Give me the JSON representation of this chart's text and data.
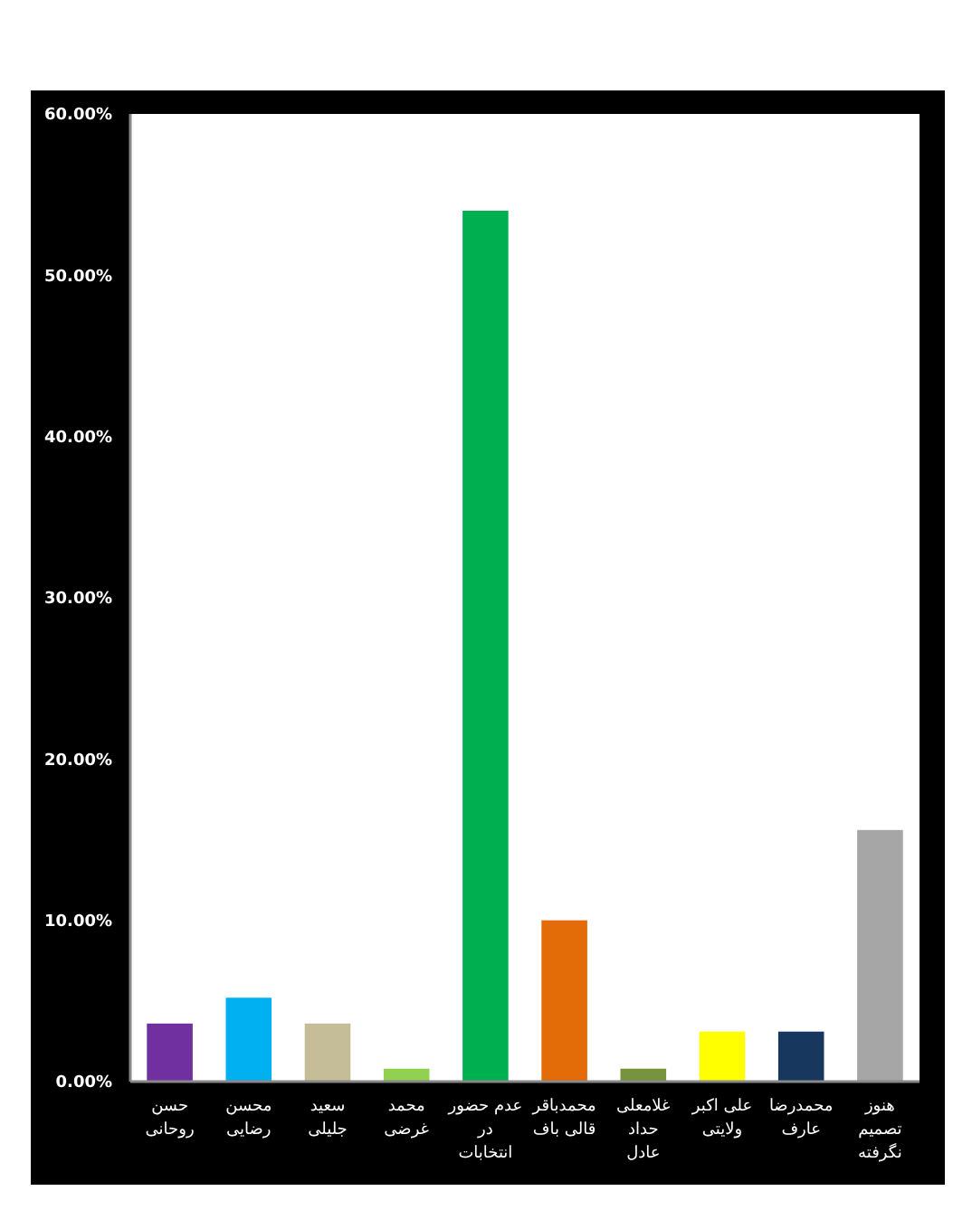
{
  "chart_data": {
    "type": "bar",
    "categories": [
      "حسن روحانی",
      "محسن رضایی",
      "سعید جلیلی",
      "محمد غرضی",
      "عدم حضور در انتخابات",
      "محمدباقر قالی باف",
      "غلامعلی حداد عادل",
      "علی اکبر ولایتی",
      "محمدرضا عارف",
      "هنوز تصمیم نگرفته"
    ],
    "values": [
      3.6,
      5.2,
      3.6,
      0.8,
      54.0,
      10.0,
      0.8,
      3.1,
      3.1,
      15.6
    ],
    "colors": [
      "#7030a0",
      "#00b0f0",
      "#c4bd97",
      "#92d050",
      "#00b050",
      "#e36c09",
      "#77933c",
      "#ffff00",
      "#17375e",
      "#a6a6a6"
    ],
    "ylim": [
      0,
      60
    ],
    "yticks": [
      {
        "value": 0,
        "label": "0.00%"
      },
      {
        "value": 10,
        "label": "10.00%"
      },
      {
        "value": 20,
        "label": "20.00%"
      },
      {
        "value": 30,
        "label": "30.00%"
      },
      {
        "value": 40,
        "label": "40.00%"
      },
      {
        "value": 50,
        "label": "50.00%"
      },
      {
        "value": 60,
        "label": "60.00%"
      }
    ],
    "grid": false
  }
}
